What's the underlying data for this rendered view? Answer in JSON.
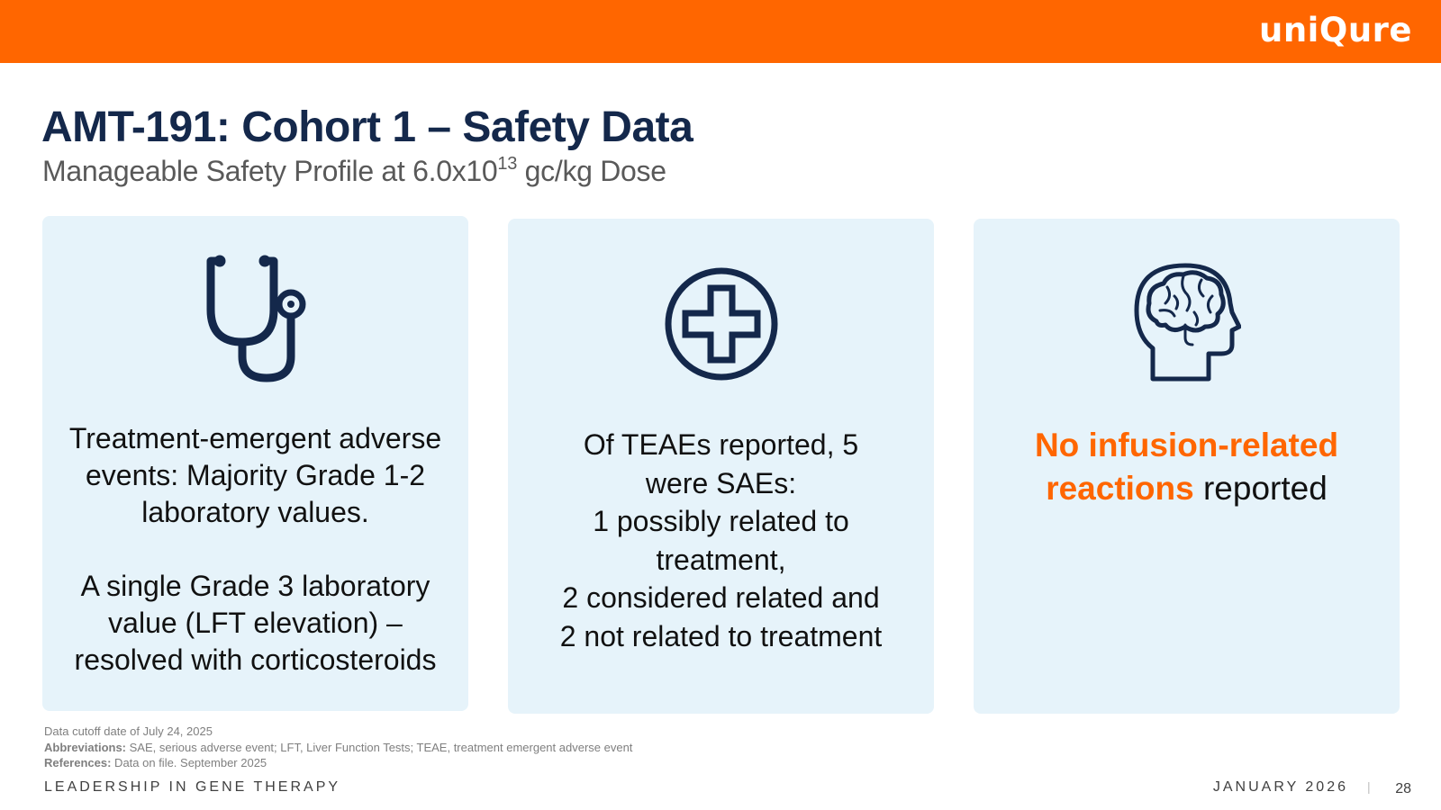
{
  "header": {
    "brand_color": "#ff6600",
    "logo_text": "uniQure"
  },
  "slide": {
    "title": "AMT-191: Cohort 1 – Safety Data",
    "subtitle_prefix": "Manageable Safety Profile at 6.0x10",
    "subtitle_exponent": "13",
    "subtitle_suffix": " gc/kg Dose"
  },
  "cards": [
    {
      "icon": "stethoscope-icon",
      "paragraph_1": "Treatment-emergent adverse events: Majority Grade 1-2 laboratory values.",
      "paragraph_2": "A single Grade 3 laboratory value (LFT elevation) – resolved with corticosteroids"
    },
    {
      "icon": "medical-cross-icon",
      "line_1": "Of TEAEs reported, 5 were SAEs:",
      "line_2": "1 possibly related to treatment,",
      "line_3": "2 considered related and",
      "line_4": "2 not related to treatment"
    },
    {
      "icon": "brain-head-icon",
      "highlight": "No infusion-related reactions",
      "rest": " reported"
    }
  ],
  "footnotes": {
    "cutoff": "Data cutoff date of July 24, 2025",
    "abbreviations_label": "Abbreviations:",
    "abbreviations_text": " SAE, serious adverse event; LFT, Liver Function Tests; TEAE, treatment emergent adverse event",
    "references_label": "References:",
    "references_text": " Data on file. September 2025"
  },
  "footer": {
    "tagline": "LEADERSHIP IN GENE THERAPY",
    "date": "JANUARY 2026",
    "separator": "|",
    "page_number": "28"
  }
}
